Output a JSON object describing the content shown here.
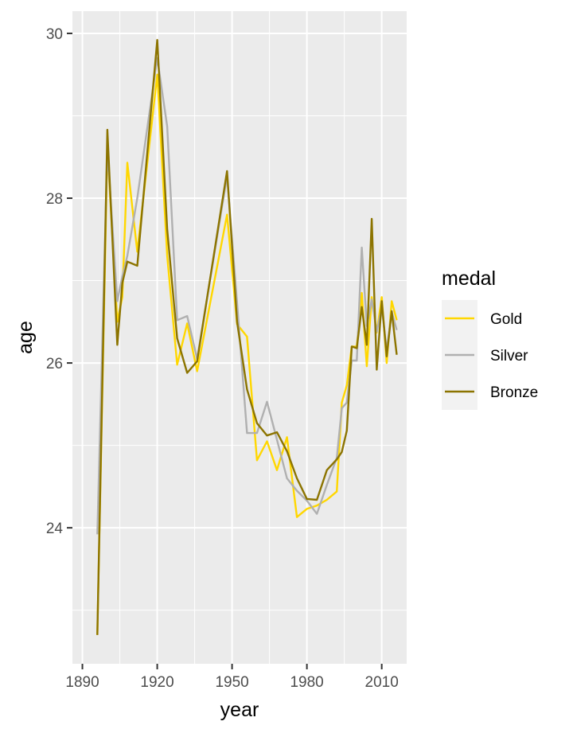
{
  "chart_data": {
    "type": "line",
    "title": "",
    "xlabel": "year",
    "ylabel": "age",
    "xlim": [
      1886,
      2020
    ],
    "ylim": [
      22.35,
      30.27
    ],
    "xticks": [
      1890,
      1920,
      1950,
      1980,
      2010
    ],
    "yticks": [
      24,
      26,
      28,
      30
    ],
    "xtick_labels": [
      "1890",
      "1920",
      "1950",
      "1980",
      "2010"
    ],
    "ytick_labels": [
      "24",
      "26",
      "28",
      "30"
    ],
    "grid": true,
    "legend": {
      "title": "medal",
      "position": "right"
    },
    "series": [
      {
        "name": "Gold",
        "color": "#FFD700",
        "x": [
          1896,
          1900,
          1904,
          1906,
          1908,
          1912,
          1920,
          1924,
          1928,
          1932,
          1936,
          1948,
          1952,
          1956,
          1960,
          1964,
          1968,
          1972,
          1976,
          1980,
          1984,
          1988,
          1992,
          1994,
          1996,
          1998,
          2000,
          2002,
          2004,
          2006,
          2008,
          2010,
          2012,
          2014,
          2016
        ],
        "y": [
          22.7,
          28.6,
          26.5,
          26.8,
          28.43,
          27.35,
          29.5,
          27.3,
          25.98,
          26.48,
          25.9,
          27.8,
          26.47,
          26.32,
          24.82,
          25.05,
          24.7,
          25.1,
          24.13,
          24.23,
          24.27,
          24.34,
          24.44,
          25.52,
          25.73,
          26.2,
          26.2,
          26.85,
          25.96,
          26.8,
          26.37,
          26.8,
          26.0,
          26.75,
          26.52
        ]
      },
      {
        "name": "Silver",
        "color": "#B0B0B0",
        "x": [
          1896,
          1900,
          1904,
          1906,
          1908,
          1912,
          1920,
          1924,
          1928,
          1932,
          1936,
          1948,
          1952,
          1956,
          1960,
          1964,
          1968,
          1972,
          1976,
          1980,
          1984,
          1988,
          1992,
          1994,
          1996,
          1998,
          2000,
          2002,
          2004,
          2006,
          2008,
          2010,
          2012,
          2014,
          2016
        ],
        "y": [
          23.92,
          28.6,
          26.75,
          27.05,
          27.3,
          28.0,
          29.7,
          28.87,
          26.52,
          26.57,
          26.05,
          28.27,
          26.73,
          25.15,
          25.15,
          25.53,
          25.07,
          24.6,
          24.45,
          24.33,
          24.17,
          24.52,
          24.85,
          25.45,
          25.52,
          26.03,
          26.03,
          27.4,
          26.45,
          26.77,
          26.38,
          26.67,
          26.15,
          26.62,
          26.4
        ]
      },
      {
        "name": "Bronze",
        "color": "#8C7400",
        "x": [
          1896,
          1900,
          1904,
          1906,
          1908,
          1912,
          1920,
          1924,
          1928,
          1932,
          1936,
          1948,
          1952,
          1956,
          1960,
          1964,
          1968,
          1972,
          1976,
          1980,
          1984,
          1988,
          1992,
          1994,
          1996,
          1998,
          2000,
          2002,
          2004,
          2006,
          2008,
          2010,
          2012,
          2014,
          2016
        ],
        "y": [
          22.7,
          28.83,
          26.22,
          26.97,
          27.23,
          27.18,
          29.92,
          27.62,
          26.3,
          25.88,
          26.02,
          28.33,
          26.5,
          25.68,
          25.27,
          25.12,
          25.16,
          24.93,
          24.6,
          24.35,
          24.34,
          24.7,
          24.83,
          24.92,
          25.18,
          26.2,
          26.18,
          26.68,
          26.22,
          27.75,
          25.92,
          26.75,
          26.08,
          26.63,
          26.1
        ]
      }
    ]
  }
}
